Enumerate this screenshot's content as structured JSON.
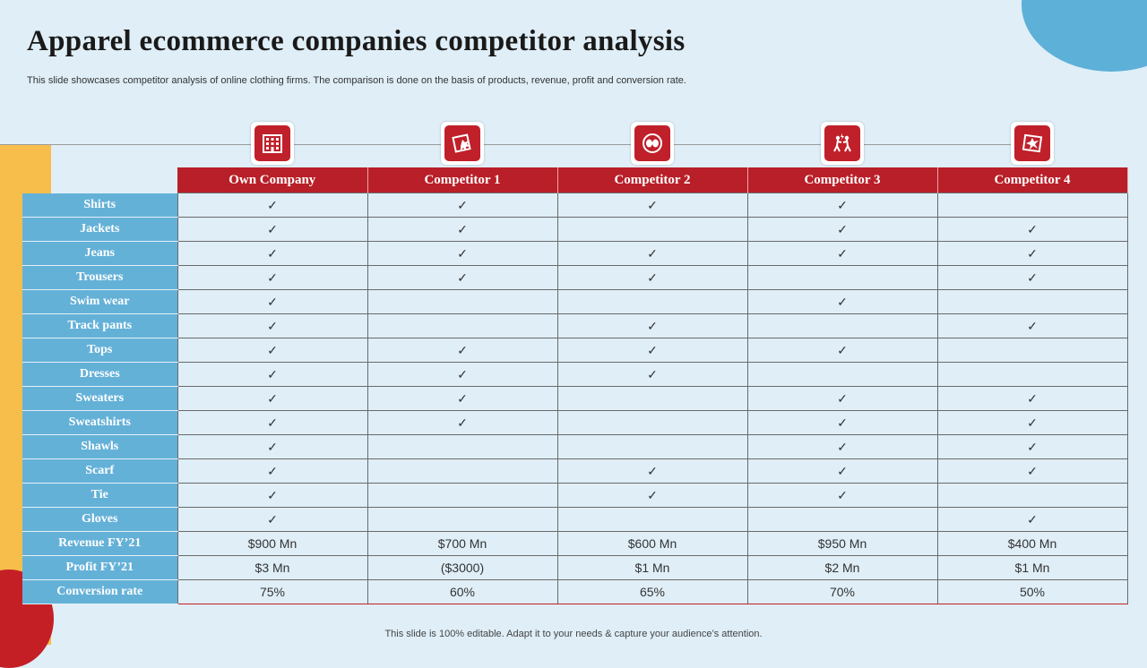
{
  "title": "Apparel ecommerce companies competitor analysis",
  "subtitle": "This slide showcases competitor analysis of online clothing firms. The comparison is done on the basis of products, revenue, profit and conversion rate.",
  "footer": "This slide is 100% editable. Adapt it to your needs & capture your audience’s attention.",
  "colors": {
    "header_red": "#b81f28",
    "row_blue": "#64b1d8",
    "accent_yellow": "#f7be4b",
    "background": "#dfeef7"
  },
  "check_mark": "✓",
  "columns": [
    {
      "label": "Own Company",
      "icon": "office-building-icon"
    },
    {
      "label": "Competitor  1",
      "icon": "broken-window-icon"
    },
    {
      "label": "Competitor  2",
      "icon": "boxing-gloves-icon"
    },
    {
      "label": "Competitor  3",
      "icon": "fighting-people-icon"
    },
    {
      "label": "Competitor  4",
      "icon": "shattered-glass-icon"
    }
  ],
  "rows": [
    {
      "label": "Shirts",
      "cells": [
        "✓",
        "✓",
        "✓",
        "✓",
        ""
      ]
    },
    {
      "label": "Jackets",
      "cells": [
        "✓",
        "✓",
        "",
        "✓",
        "✓"
      ]
    },
    {
      "label": "Jeans",
      "cells": [
        "✓",
        "✓",
        "✓",
        "✓",
        "✓"
      ]
    },
    {
      "label": "Trousers",
      "cells": [
        "✓",
        "✓",
        "✓",
        "",
        "✓"
      ]
    },
    {
      "label": "Swim wear",
      "cells": [
        "✓",
        "",
        "",
        "✓",
        ""
      ]
    },
    {
      "label": "Track pants",
      "cells": [
        "✓",
        "",
        "✓",
        "",
        "✓"
      ]
    },
    {
      "label": "Tops",
      "cells": [
        "✓",
        "✓",
        "✓",
        "✓",
        ""
      ]
    },
    {
      "label": "Dresses",
      "cells": [
        "✓",
        "✓",
        "✓",
        "",
        ""
      ]
    },
    {
      "label": "Sweaters",
      "cells": [
        "✓",
        "✓",
        "",
        "✓",
        "✓"
      ]
    },
    {
      "label": "Sweatshirts",
      "cells": [
        "✓",
        "✓",
        "",
        "✓",
        "✓"
      ]
    },
    {
      "label": "Shawls",
      "cells": [
        "✓",
        "",
        "",
        "✓",
        "✓"
      ]
    },
    {
      "label": "Scarf",
      "cells": [
        "✓",
        "",
        "✓",
        "✓",
        "✓"
      ]
    },
    {
      "label": "Tie",
      "cells": [
        "✓",
        "",
        "✓",
        "✓",
        ""
      ]
    },
    {
      "label": "Gloves",
      "cells": [
        "✓",
        "",
        "",
        "",
        "✓"
      ]
    },
    {
      "label": "Revenue FY’21",
      "cells": [
        "$900 Mn",
        "$700 Mn",
        "$600 Mn",
        "$950 Mn",
        "$400 Mn"
      ]
    },
    {
      "label": "Profit FY’21",
      "cells": [
        "$3 Mn",
        "($3000)",
        "$1 Mn",
        "$2 Mn",
        "$1 Mn"
      ]
    },
    {
      "label": "Conversion rate",
      "cells": [
        "75%",
        "60%",
        "65%",
        "70%",
        "50%"
      ]
    }
  ]
}
